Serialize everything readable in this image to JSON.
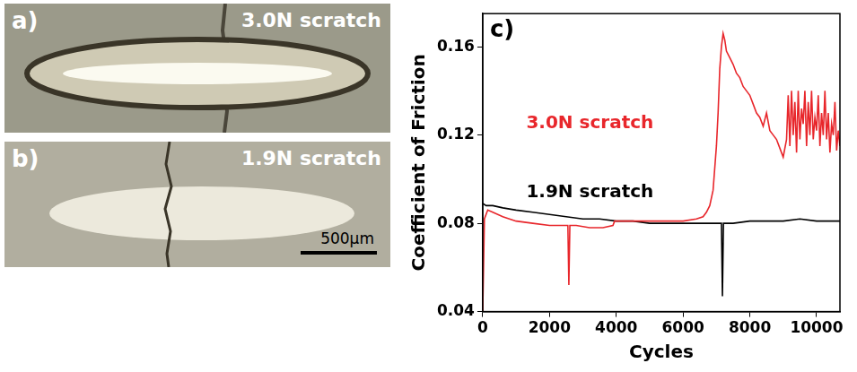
{
  "panels": [
    {
      "label": "a)",
      "text": "3.0N scratch"
    },
    {
      "label": "b)",
      "text": "1.9N scratch",
      "scale_bar": "500μm"
    }
  ],
  "chart_data": {
    "type": "line",
    "title": "c)",
    "x_label": "Cycles",
    "y_label": "Coefficient of Friction",
    "xlim": [
      0,
      10700
    ],
    "xticks": [
      0,
      2000,
      4000,
      6000,
      8000,
      10000
    ],
    "ylim": [
      0.04,
      0.175
    ],
    "yticks": [
      0.04,
      0.08,
      0.12,
      0.16
    ],
    "grid": false,
    "series": [
      {
        "name": "3.0N scratch",
        "color": "#e8262b",
        "x": [
          0,
          50,
          150,
          300,
          600,
          1000,
          1500,
          2000,
          2400,
          2550,
          2580,
          2610,
          2800,
          3200,
          3600,
          3900,
          3950,
          4500,
          5000,
          5500,
          6000,
          6400,
          6600,
          6700,
          6800,
          6900,
          7000,
          7050,
          7100,
          7150,
          7200,
          7250,
          7300,
          7400,
          7500,
          7600,
          7700,
          7800,
          7900,
          8000,
          8100,
          8200,
          8300,
          8400,
          8500,
          8600,
          8700,
          8800,
          8900,
          9000,
          9100,
          9150,
          9200,
          9250,
          9300,
          9350,
          9400,
          9450,
          9500,
          9550,
          9600,
          9650,
          9700,
          9750,
          9800,
          9850,
          9900,
          9950,
          10000,
          10050,
          10100,
          10150,
          10200,
          10250,
          10300,
          10350,
          10400,
          10450,
          10500,
          10550,
          10600,
          10650,
          10700
        ],
        "values": [
          0.04,
          0.082,
          0.086,
          0.085,
          0.083,
          0.081,
          0.08,
          0.079,
          0.079,
          0.079,
          0.052,
          0.079,
          0.079,
          0.078,
          0.078,
          0.079,
          0.081,
          0.081,
          0.081,
          0.081,
          0.081,
          0.082,
          0.083,
          0.085,
          0.088,
          0.095,
          0.115,
          0.13,
          0.15,
          0.16,
          0.166,
          0.163,
          0.158,
          0.155,
          0.152,
          0.148,
          0.146,
          0.142,
          0.14,
          0.138,
          0.134,
          0.13,
          0.128,
          0.124,
          0.13,
          0.122,
          0.12,
          0.118,
          0.114,
          0.11,
          0.118,
          0.138,
          0.115,
          0.14,
          0.12,
          0.135,
          0.112,
          0.14,
          0.118,
          0.132,
          0.125,
          0.14,
          0.115,
          0.135,
          0.12,
          0.14,
          0.118,
          0.128,
          0.122,
          0.138,
          0.115,
          0.13,
          0.12,
          0.14,
          0.118,
          0.13,
          0.112,
          0.125,
          0.12,
          0.135,
          0.113,
          0.122,
          0.115
        ]
      },
      {
        "name": "1.9N scratch",
        "color": "#000000",
        "x": [
          0,
          100,
          300,
          600,
          1000,
          1500,
          2000,
          2500,
          3000,
          3500,
          4000,
          4500,
          5000,
          5500,
          6000,
          6500,
          7000,
          7150,
          7180,
          7210,
          7500,
          8000,
          8500,
          9000,
          9500,
          10000,
          10700
        ],
        "values": [
          0.089,
          0.088,
          0.088,
          0.087,
          0.086,
          0.085,
          0.084,
          0.083,
          0.082,
          0.082,
          0.081,
          0.081,
          0.08,
          0.08,
          0.08,
          0.08,
          0.08,
          0.08,
          0.047,
          0.08,
          0.08,
          0.081,
          0.081,
          0.081,
          0.082,
          0.081,
          0.081
        ]
      }
    ]
  }
}
